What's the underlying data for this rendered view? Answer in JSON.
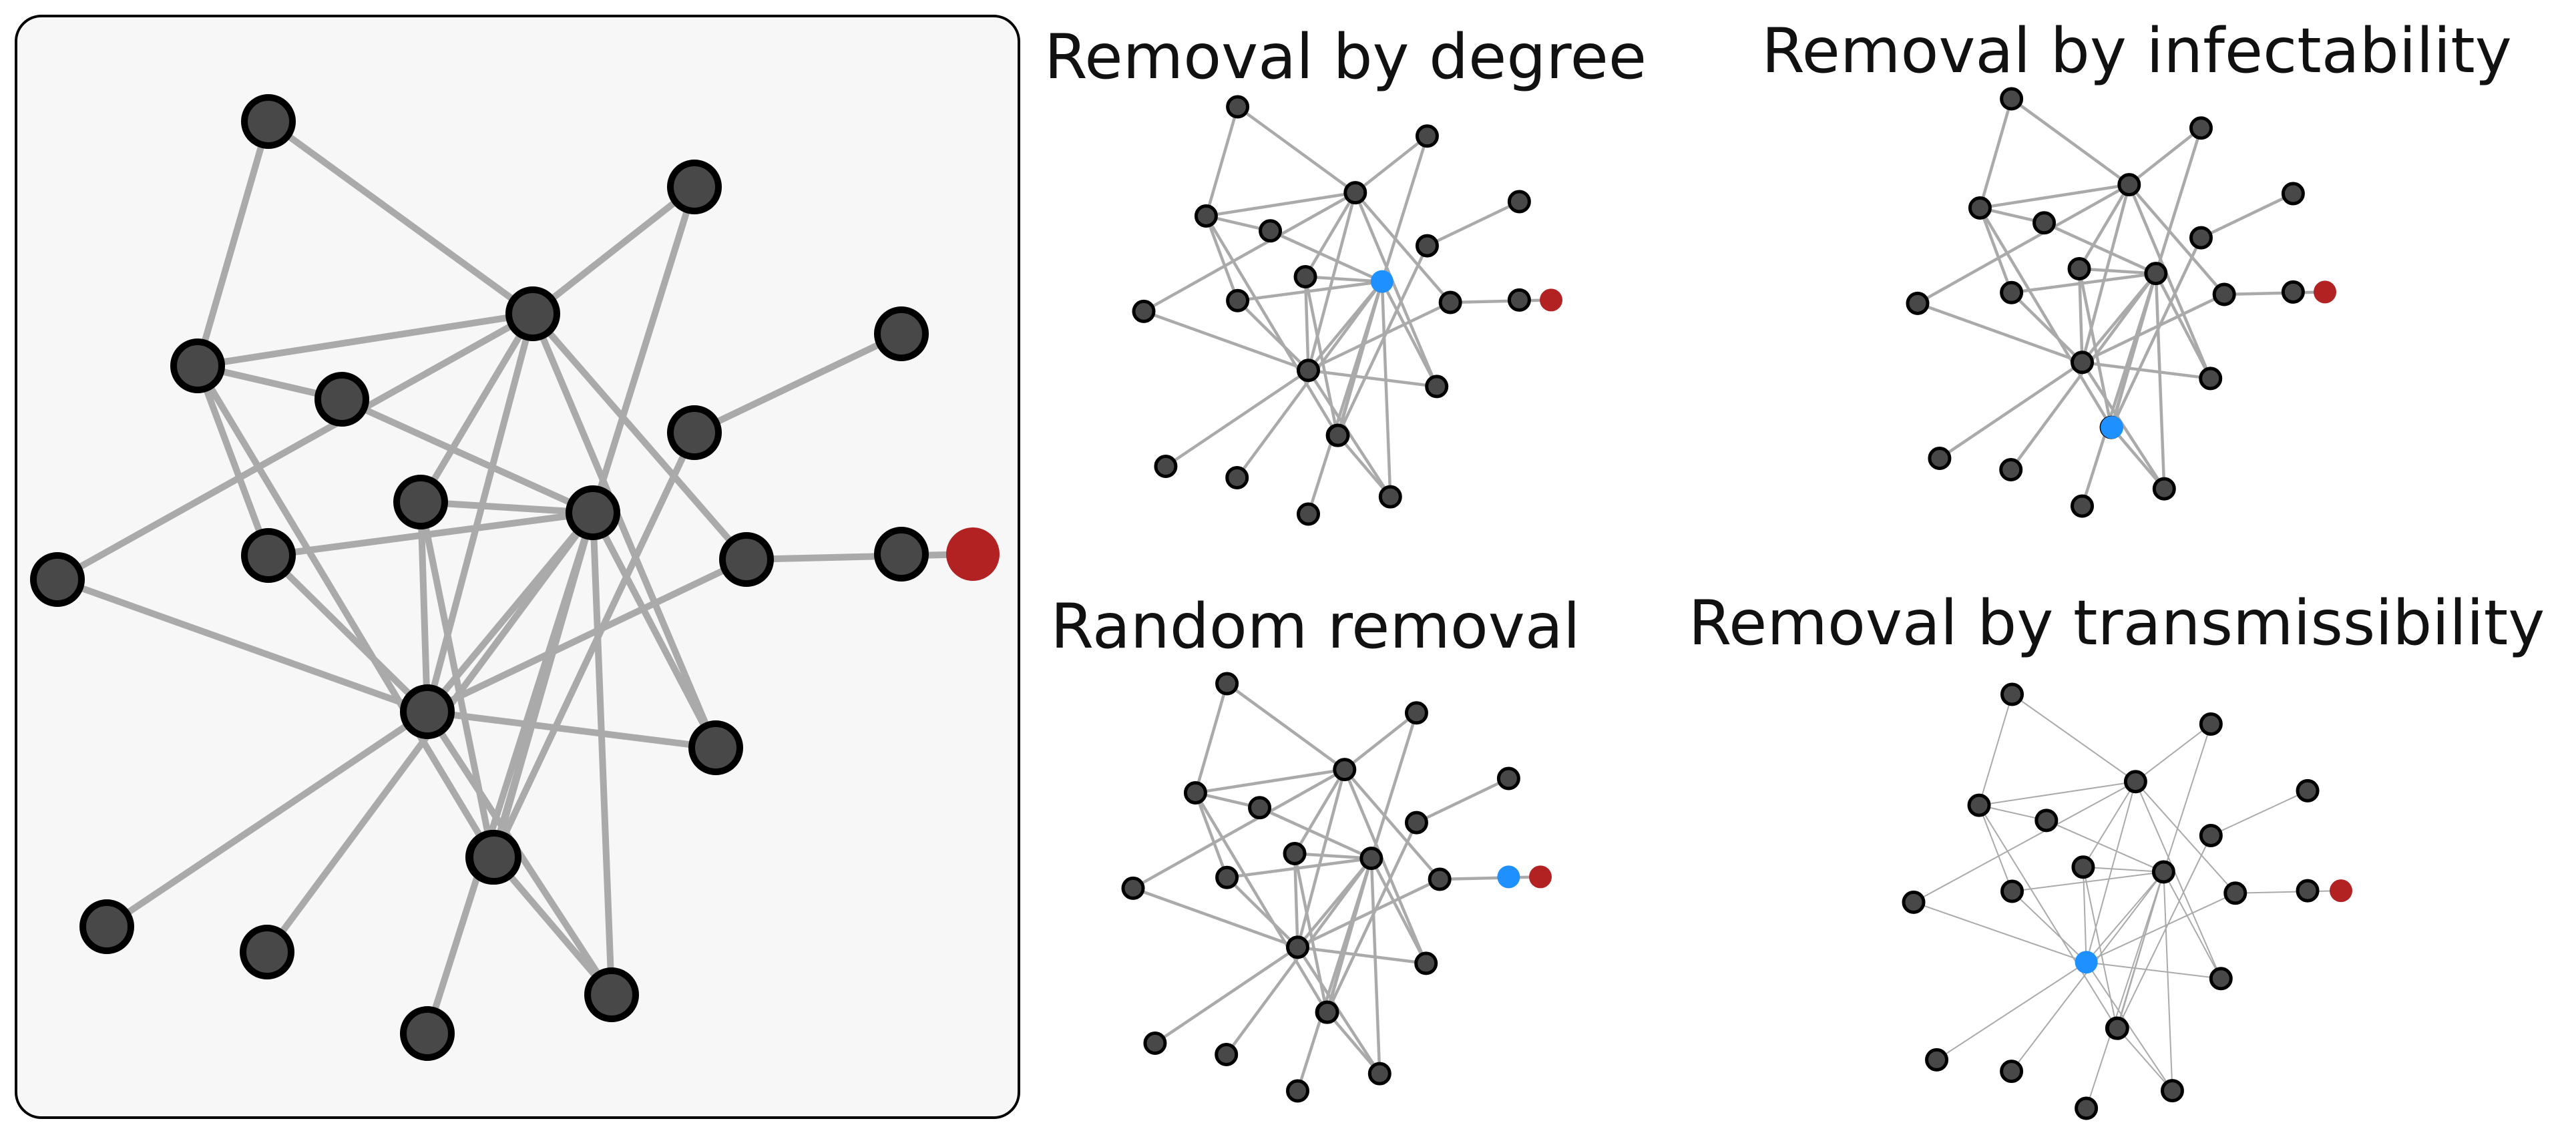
{
  "titles": {
    "degree": "Removal by degree",
    "infectability": "Removal by infectability",
    "random": "Random removal",
    "transmissibility": "Removal by transmissibility"
  },
  "colors": {
    "node": "#484848",
    "node_stroke": "#000000",
    "edge": "#aaaaaa",
    "source": "#b22222",
    "removed": "#1e90ff",
    "panel_bg": "#f7f7f7"
  },
  "graph": {
    "node_count": 22,
    "source_node": 21,
    "edges": [
      [
        0,
        2
      ],
      [
        0,
        3
      ],
      [
        1,
        3
      ],
      [
        1,
        8
      ],
      [
        2,
        3
      ],
      [
        2,
        4
      ],
      [
        2,
        6
      ],
      [
        2,
        14
      ],
      [
        3,
        5
      ],
      [
        3,
        7
      ],
      [
        3,
        9
      ],
      [
        3,
        10
      ],
      [
        3,
        11
      ],
      [
        4,
        8
      ],
      [
        5,
        8
      ],
      [
        5,
        9
      ],
      [
        5,
        14
      ],
      [
        6,
        8
      ],
      [
        6,
        9
      ],
      [
        7,
        9
      ],
      [
        8,
        9
      ],
      [
        8,
        11
      ],
      [
        8,
        15
      ],
      [
        8,
        16
      ],
      [
        8,
        14
      ],
      [
        8,
        18
      ],
      [
        8,
        13
      ],
      [
        9,
        10
      ],
      [
        9,
        11
      ],
      [
        9,
        12
      ],
      [
        9,
        18
      ],
      [
        10,
        21
      ],
      [
        16,
        17
      ],
      [
        16,
        18
      ],
      [
        17,
        19
      ]
    ]
  },
  "removed_nodes": {
    "degree": 8,
    "infectability": 16,
    "random": 20,
    "transmissibility": 9
  }
}
